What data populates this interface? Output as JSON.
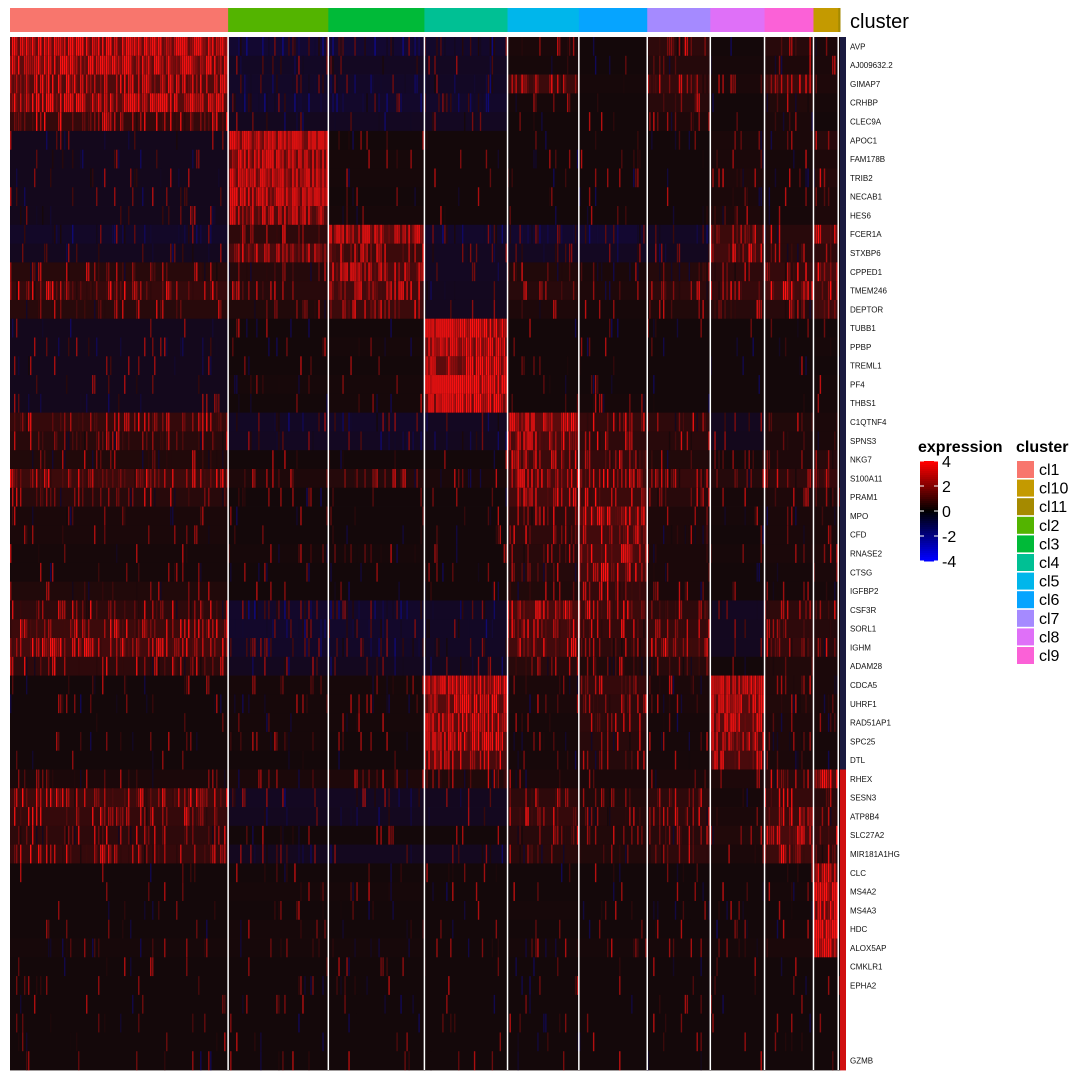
{
  "chart_data": {
    "type": "heatmap",
    "title": "",
    "xlabel": "",
    "ylabel": "",
    "annotation_bar_label": "cluster",
    "column_groups": [
      {
        "name": "cl1",
        "color": "#F8766D",
        "cells": 370
      },
      {
        "name": "cl2",
        "color": "#53B400",
        "cells": 170
      },
      {
        "name": "cl3",
        "color": "#00BA38",
        "cells": 163
      },
      {
        "name": "cl4",
        "color": "#00C094",
        "cells": 141
      },
      {
        "name": "cl5",
        "color": "#00B6EB",
        "cells": 121
      },
      {
        "name": "cl6",
        "color": "#06A4FF",
        "cells": 116
      },
      {
        "name": "cl7",
        "color": "#A58AFF",
        "cells": 107
      },
      {
        "name": "cl8",
        "color": "#DF70F8",
        "cells": 92
      },
      {
        "name": "cl9",
        "color": "#FB61D7",
        "cells": 83
      },
      {
        "name": "cl10",
        "color": "#C49A00",
        "cells": 42
      },
      {
        "name": "cl11",
        "color": "#A58A00",
        "cells": 3
      }
    ],
    "genes": [
      "AVP",
      "AJ009632.2",
      "GIMAP7",
      "CRHBP",
      "CLEC9A",
      "APOC1",
      "FAM178B",
      "TRIB2",
      "NECAB1",
      "HES6",
      "FCER1A",
      "STXBP6",
      "CPPED1",
      "TMEM246",
      "DEPTOR",
      "TUBB1",
      "PPBP",
      "TREML1",
      "PF4",
      "THBS1",
      "C1QTNF4",
      "SPNS3",
      "NKG7",
      "S100A11",
      "PRAM1",
      "MPO",
      "CFD",
      "RNASE2",
      "CTSG",
      "IGFBP2",
      "CSF3R",
      "SORL1",
      "IGHM",
      "ADAM28",
      "CDCA5",
      "UHRF1",
      "RAD51AP1",
      "SPC25",
      "DTL",
      "RHEX",
      "SESN3",
      "ATP8B4",
      "SLC27A2",
      "MIR181A1HG",
      "CLC",
      "MS4A2",
      "MS4A3",
      "HDC",
      "ALOX5AP",
      "CMKLR1",
      "EPHA2",
      "",
      "",
      "",
      "GZMB"
    ],
    "mean_expression_by_cluster": {
      "note_order": "rows follow genes[]; columns follow cluster order cl1..cl11",
      "values": [
        [
          2.4,
          -0.8,
          -0.8,
          -0.6,
          0.2,
          0.0,
          0.8,
          0.0,
          0.6,
          0.2,
          0.0
        ],
        [
          2.2,
          -0.4,
          -0.3,
          -0.3,
          0.1,
          0.0,
          0.5,
          0.1,
          0.3,
          0.2,
          0.0
        ],
        [
          1.8,
          -0.5,
          -0.5,
          -0.4,
          1.2,
          0.1,
          1.0,
          0.2,
          1.2,
          0.3,
          0.0
        ],
        [
          2.0,
          -0.6,
          -0.6,
          -0.6,
          0.1,
          0.0,
          0.6,
          0.0,
          0.4,
          0.1,
          0.0
        ],
        [
          1.0,
          -0.2,
          -0.3,
          -0.3,
          0.0,
          0.0,
          0.3,
          0.0,
          0.2,
          0.0,
          0.0
        ],
        [
          -0.1,
          2.6,
          0.0,
          0.0,
          0.0,
          0.0,
          0.0,
          0.2,
          0.2,
          0.6,
          0.0
        ],
        [
          -0.1,
          2.2,
          0.1,
          0.0,
          0.0,
          0.0,
          0.0,
          0.2,
          0.1,
          0.3,
          0.0
        ],
        [
          -0.1,
          2.4,
          0.1,
          0.0,
          0.0,
          0.0,
          0.0,
          0.3,
          0.1,
          0.5,
          0.0
        ],
        [
          -0.1,
          2.3,
          0.0,
          0.0,
          0.0,
          0.0,
          0.0,
          0.2,
          0.1,
          0.3,
          0.0
        ],
        [
          -0.1,
          1.8,
          0.1,
          0.0,
          0.0,
          0.0,
          0.0,
          0.3,
          0.1,
          0.3,
          0.0
        ],
        [
          -0.5,
          0.8,
          2.0,
          -0.6,
          -0.7,
          -0.8,
          -0.4,
          1.2,
          0.6,
          1.4,
          0.0
        ],
        [
          -0.2,
          1.6,
          1.2,
          -0.3,
          -0.3,
          -0.3,
          -0.2,
          1.4,
          0.6,
          0.8,
          0.0
        ],
        [
          0.6,
          0.5,
          1.6,
          -0.3,
          0.4,
          0.2,
          0.5,
          0.8,
          1.0,
          1.6,
          0.0
        ],
        [
          1.0,
          0.6,
          1.4,
          -0.2,
          0.6,
          0.3,
          0.8,
          1.0,
          1.4,
          1.2,
          0.0
        ],
        [
          0.6,
          0.4,
          1.2,
          -0.2,
          0.3,
          0.1,
          0.4,
          0.6,
          0.6,
          1.4,
          0.0
        ],
        [
          -0.1,
          0.0,
          0.0,
          2.8,
          0.0,
          0.0,
          0.0,
          0.0,
          0.0,
          0.0,
          0.0
        ],
        [
          -0.1,
          0.0,
          0.1,
          2.4,
          0.0,
          0.0,
          0.0,
          0.0,
          0.0,
          0.1,
          0.0
        ],
        [
          -0.1,
          0.0,
          0.0,
          2.2,
          0.0,
          0.0,
          0.0,
          0.0,
          0.0,
          0.0,
          0.0
        ],
        [
          -0.1,
          0.1,
          0.1,
          3.2,
          0.0,
          0.0,
          0.0,
          0.0,
          0.0,
          0.1,
          0.0
        ],
        [
          -0.1,
          0.0,
          0.1,
          2.6,
          0.0,
          0.1,
          0.0,
          0.0,
          0.0,
          0.1,
          0.0
        ],
        [
          1.0,
          -0.4,
          -0.5,
          -0.3,
          2.2,
          1.0,
          0.8,
          -0.2,
          0.4,
          0.2,
          0.0
        ],
        [
          0.6,
          -0.3,
          -0.3,
          -0.2,
          1.6,
          0.8,
          0.6,
          -0.1,
          0.3,
          0.2,
          0.0
        ],
        [
          0.4,
          0.0,
          0.0,
          0.0,
          1.2,
          1.0,
          0.4,
          0.1,
          0.3,
          0.6,
          0.0
        ],
        [
          1.2,
          0.3,
          0.5,
          0.2,
          1.6,
          1.2,
          1.0,
          0.5,
          0.8,
          1.0,
          0.0
        ],
        [
          0.6,
          0.0,
          0.0,
          0.0,
          1.4,
          1.2,
          0.6,
          0.1,
          0.3,
          0.4,
          0.0
        ],
        [
          0.2,
          0.0,
          0.0,
          0.0,
          0.8,
          1.8,
          0.3,
          0.1,
          0.2,
          0.2,
          0.0
        ],
        [
          0.2,
          0.0,
          0.0,
          0.0,
          0.8,
          1.4,
          0.3,
          0.0,
          0.2,
          0.2,
          0.0
        ],
        [
          0.1,
          0.1,
          0.1,
          0.0,
          0.6,
          1.6,
          0.2,
          0.1,
          0.2,
          0.3,
          0.0
        ],
        [
          0.1,
          0.0,
          0.0,
          0.0,
          0.5,
          1.4,
          0.2,
          0.0,
          0.1,
          0.2,
          0.0
        ],
        [
          0.4,
          0.0,
          0.0,
          0.0,
          0.4,
          1.0,
          0.2,
          0.0,
          0.1,
          0.1,
          0.0
        ],
        [
          0.8,
          -0.6,
          -0.6,
          -0.4,
          1.6,
          1.2,
          0.8,
          -0.3,
          0.8,
          0.6,
          0.0
        ],
        [
          1.2,
          -0.6,
          -0.6,
          -0.4,
          1.4,
          1.0,
          1.0,
          -0.2,
          0.8,
          0.5,
          0.0
        ],
        [
          1.4,
          -0.5,
          -0.5,
          -0.4,
          1.4,
          0.8,
          1.2,
          -0.2,
          1.0,
          0.6,
          0.0
        ],
        [
          0.8,
          -0.2,
          -0.2,
          -0.2,
          0.6,
          0.4,
          0.6,
          0.0,
          0.4,
          0.2,
          0.0
        ],
        [
          0.0,
          0.1,
          0.1,
          2.4,
          0.2,
          1.0,
          0.2,
          2.2,
          0.4,
          0.2,
          0.0
        ],
        [
          0.0,
          0.1,
          0.1,
          2.0,
          0.2,
          0.8,
          0.2,
          2.0,
          0.4,
          0.2,
          0.0
        ],
        [
          0.0,
          0.1,
          0.1,
          2.2,
          0.1,
          0.8,
          0.1,
          2.0,
          0.3,
          0.2,
          0.0
        ],
        [
          0.0,
          0.1,
          0.0,
          2.0,
          0.1,
          0.6,
          0.1,
          1.8,
          0.3,
          0.1,
          0.0
        ],
        [
          0.0,
          0.0,
          0.0,
          1.6,
          0.1,
          0.5,
          0.1,
          1.6,
          0.2,
          0.1,
          0.0
        ],
        [
          0.2,
          0.2,
          0.3,
          0.4,
          0.2,
          0.2,
          0.2,
          0.3,
          0.6,
          1.8,
          0.0
        ],
        [
          1.2,
          -0.3,
          -0.3,
          -0.2,
          0.8,
          0.4,
          0.8,
          0.1,
          1.0,
          0.6,
          0.0
        ],
        [
          1.0,
          -0.2,
          -0.2,
          -0.2,
          1.0,
          0.5,
          0.8,
          0.2,
          1.2,
          0.8,
          0.0
        ],
        [
          0.8,
          0.0,
          0.0,
          0.0,
          0.6,
          0.4,
          0.6,
          0.4,
          1.6,
          1.0,
          0.0
        ],
        [
          1.0,
          -0.2,
          -0.2,
          -0.2,
          0.6,
          0.4,
          0.8,
          0.2,
          1.2,
          0.8,
          0.0
        ],
        [
          0.0,
          0.0,
          0.0,
          0.0,
          0.0,
          0.0,
          0.0,
          0.0,
          0.0,
          2.2,
          0.0
        ],
        [
          0.0,
          0.1,
          0.1,
          0.0,
          0.0,
          0.0,
          0.0,
          0.0,
          0.1,
          3.0,
          0.0
        ],
        [
          0.0,
          0.0,
          0.0,
          0.0,
          0.1,
          0.0,
          0.0,
          0.0,
          0.0,
          2.4,
          0.0
        ],
        [
          0.0,
          0.1,
          0.0,
          0.0,
          0.0,
          0.0,
          0.0,
          0.0,
          0.1,
          3.2,
          0.0
        ],
        [
          0.1,
          0.1,
          0.1,
          0.0,
          0.1,
          0.1,
          0.1,
          0.1,
          0.2,
          2.8,
          0.0
        ],
        [
          0.0,
          0.0,
          0.0,
          0.0,
          0.0,
          0.0,
          0.0,
          0.0,
          0.0,
          0.0,
          0.0
        ],
        [
          0.0,
          0.0,
          0.0,
          0.0,
          0.0,
          0.0,
          0.0,
          0.0,
          0.0,
          0.0,
          0.0
        ],
        [
          0.0,
          0.0,
          0.0,
          0.0,
          0.0,
          0.0,
          0.0,
          0.0,
          0.0,
          0.0,
          0.0
        ],
        [
          0.0,
          0.0,
          0.0,
          0.0,
          0.0,
          0.0,
          0.0,
          0.0,
          0.0,
          0.0,
          0.0
        ],
        [
          0.0,
          0.0,
          0.0,
          0.0,
          0.0,
          0.0,
          0.0,
          0.0,
          0.0,
          0.0,
          0.0
        ],
        [
          0.0,
          0.0,
          0.0,
          0.0,
          0.0,
          0.0,
          0.0,
          0.0,
          0.0,
          0.0,
          0.0
        ]
      ]
    },
    "color_scale": {
      "title": "expression",
      "ticks": [
        4,
        2,
        0,
        -2,
        -4
      ],
      "low_color": "#0000FF",
      "mid_color": "#000000",
      "high_color": "#FF0000",
      "range": [
        -4,
        4
      ]
    },
    "legend": {
      "position": "right",
      "cluster_title": "cluster",
      "cluster_entries": [
        {
          "label": "cl1",
          "color": "#F8766D"
        },
        {
          "label": "cl10",
          "color": "#C49A00"
        },
        {
          "label": "cl11",
          "color": "#A58A00"
        },
        {
          "label": "cl2",
          "color": "#53B400"
        },
        {
          "label": "cl3",
          "color": "#00BA38"
        },
        {
          "label": "cl4",
          "color": "#00C094"
        },
        {
          "label": "cl5",
          "color": "#00B6EB"
        },
        {
          "label": "cl6",
          "color": "#06A4FF"
        },
        {
          "label": "cl7",
          "color": "#A58AFF"
        },
        {
          "label": "cl8",
          "color": "#DF70F8"
        },
        {
          "label": "cl9",
          "color": "#FB61D7"
        }
      ]
    },
    "grid": false
  }
}
